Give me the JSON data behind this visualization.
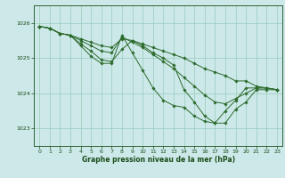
{
  "bg_color": "#cce8e8",
  "grid_color": "#99ccbb",
  "line_color": "#2d6b2d",
  "marker_color": "#2d6b2d",
  "xlabel": "Graphe pression niveau de la mer (hPa)",
  "xlabel_color": "#1a4d1a",
  "tick_color": "#1a4d1a",
  "ylim": [
    1022.5,
    1026.5
  ],
  "xlim": [
    -0.5,
    23.5
  ],
  "yticks": [
    1023,
    1024,
    1025,
    1026
  ],
  "xticks": [
    0,
    1,
    2,
    3,
    4,
    5,
    6,
    7,
    8,
    9,
    10,
    11,
    12,
    13,
    14,
    15,
    16,
    17,
    18,
    19,
    20,
    21,
    22,
    23
  ],
  "series": [
    [
      1025.9,
      1025.85,
      1025.7,
      1025.65,
      1025.55,
      1025.45,
      1025.35,
      1025.3,
      1025.55,
      1025.5,
      1025.4,
      1025.3,
      1025.2,
      1025.1,
      1025.0,
      1024.85,
      1024.7,
      1024.6,
      1024.5,
      1024.35,
      1024.35,
      1024.2,
      1024.15,
      1024.1
    ],
    [
      1025.9,
      1025.85,
      1025.7,
      1025.65,
      1025.5,
      1025.35,
      1025.2,
      1025.15,
      1025.6,
      1025.45,
      1025.3,
      1025.1,
      1024.9,
      1024.7,
      1024.45,
      1024.2,
      1023.95,
      1023.75,
      1023.7,
      1023.85,
      1024.0,
      1024.15,
      1024.15,
      1024.1
    ],
    [
      1025.9,
      1025.85,
      1025.7,
      1025.65,
      1025.4,
      1025.2,
      1024.95,
      1024.9,
      1025.25,
      1025.5,
      1025.35,
      1025.15,
      1025.0,
      1024.8,
      1024.1,
      1023.75,
      1023.35,
      1023.15,
      1023.15,
      1023.55,
      1023.75,
      1024.1,
      1024.1,
      1024.1
    ],
    [
      1025.9,
      1025.85,
      1025.7,
      1025.65,
      1025.35,
      1025.05,
      1024.85,
      1024.85,
      1025.65,
      1025.15,
      1024.65,
      1024.15,
      1023.8,
      1023.65,
      1023.6,
      1023.35,
      1023.2,
      1023.15,
      1023.5,
      1023.8,
      1024.15,
      1024.15,
      1024.15,
      1024.1
    ]
  ]
}
